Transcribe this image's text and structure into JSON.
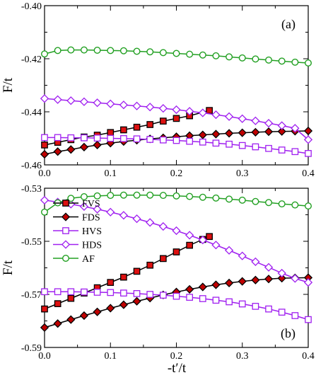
{
  "chart_data": [
    {
      "panel_label": "(a)",
      "type": "line",
      "ylabel": "F/t",
      "xlabel": "",
      "xlim": [
        0,
        0.4
      ],
      "ylim": [
        -0.46,
        -0.4
      ],
      "xticks": [
        0,
        0.1,
        0.2,
        0.3,
        0.4
      ],
      "xticklabels": [
        "0.0",
        "0.1",
        "0.2",
        "0.3",
        "0.4"
      ],
      "yticks": [
        -0.46,
        -0.44,
        -0.42,
        -0.4
      ],
      "yticklabels": [
        "-0.46",
        "-0.44",
        "-0.42",
        "-0.40"
      ],
      "grid": false,
      "series": [
        {
          "name": "FVS",
          "marker": "square",
          "fill": "#dd1010",
          "stroke": "#000000",
          "line": "#000000",
          "x": [
            0,
            0.02,
            0.04,
            0.06,
            0.08,
            0.1,
            0.12,
            0.14,
            0.16,
            0.18,
            0.2,
            0.22,
            0.25
          ],
          "y": [
            -0.4525,
            -0.4515,
            -0.4505,
            -0.4495,
            -0.4488,
            -0.4478,
            -0.4468,
            -0.4458,
            -0.4448,
            -0.4435,
            -0.4425,
            -0.4415,
            -0.4395
          ]
        },
        {
          "name": "FDS",
          "marker": "diamond",
          "fill": "#c00000",
          "stroke": "#000000",
          "line": "#000000",
          "x": [
            0,
            0.02,
            0.04,
            0.06,
            0.08,
            0.1,
            0.12,
            0.14,
            0.16,
            0.18,
            0.2,
            0.22,
            0.24,
            0.26,
            0.28,
            0.3,
            0.32,
            0.34,
            0.36,
            0.38,
            0.4
          ],
          "y": [
            -0.456,
            -0.455,
            -0.4542,
            -0.4533,
            -0.4525,
            -0.4518,
            -0.4512,
            -0.4507,
            -0.4502,
            -0.4498,
            -0.4494,
            -0.449,
            -0.4487,
            -0.4484,
            -0.4481,
            -0.4479,
            -0.4477,
            -0.4475,
            -0.4474,
            -0.4473,
            -0.4472
          ]
        },
        {
          "name": "HVS",
          "marker": "square-open",
          "fill": "#ffffff",
          "stroke": "#a020f0",
          "line": "#a020f0",
          "x": [
            0,
            0.02,
            0.04,
            0.06,
            0.08,
            0.1,
            0.12,
            0.14,
            0.16,
            0.18,
            0.2,
            0.22,
            0.24,
            0.26,
            0.28,
            0.3,
            0.32,
            0.34,
            0.36,
            0.38,
            0.4
          ],
          "y": [
            -0.4497,
            -0.4497,
            -0.4498,
            -0.4498,
            -0.4499,
            -0.45,
            -0.4501,
            -0.4502,
            -0.4504,
            -0.4506,
            -0.4508,
            -0.4511,
            -0.4514,
            -0.4518,
            -0.4522,
            -0.4527,
            -0.4532,
            -0.4538,
            -0.4544,
            -0.455,
            -0.4557
          ]
        },
        {
          "name": "HDS",
          "marker": "diamond-open",
          "fill": "#ffffff",
          "stroke": "#a020f0",
          "line": "#a020f0",
          "x": [
            0,
            0.02,
            0.04,
            0.06,
            0.08,
            0.1,
            0.12,
            0.14,
            0.16,
            0.18,
            0.2,
            0.22,
            0.24,
            0.26,
            0.28,
            0.3,
            0.32,
            0.34,
            0.36,
            0.38,
            0.4
          ],
          "y": [
            -0.435,
            -0.4354,
            -0.4358,
            -0.4362,
            -0.4366,
            -0.437,
            -0.4374,
            -0.4378,
            -0.4382,
            -0.4387,
            -0.4392,
            -0.4398,
            -0.4404,
            -0.4411,
            -0.4418,
            -0.4426,
            -0.4434,
            -0.4443,
            -0.4452,
            -0.4462,
            -0.4505
          ]
        },
        {
          "name": "AF",
          "marker": "circle-open",
          "fill": "#ffffff",
          "stroke": "#22a022",
          "line": "#22a022",
          "x": [
            0,
            0.02,
            0.04,
            0.06,
            0.08,
            0.1,
            0.12,
            0.14,
            0.16,
            0.18,
            0.2,
            0.22,
            0.24,
            0.26,
            0.28,
            0.3,
            0.32,
            0.34,
            0.36,
            0.38,
            0.4
          ],
          "y": [
            -0.4182,
            -0.4169,
            -0.4167,
            -0.4167,
            -0.4168,
            -0.4169,
            -0.417,
            -0.4172,
            -0.4174,
            -0.4177,
            -0.418,
            -0.4183,
            -0.4186,
            -0.4189,
            -0.4193,
            -0.4197,
            -0.4201,
            -0.4205,
            -0.4209,
            -0.4213,
            -0.4216
          ]
        }
      ]
    },
    {
      "panel_label": "(b)",
      "type": "line",
      "ylabel": "F/t",
      "xlabel": "-t′/t",
      "xlim": [
        0,
        0.4
      ],
      "ylim": [
        -0.59,
        -0.53
      ],
      "xticks": [
        0,
        0.1,
        0.2,
        0.3,
        0.4
      ],
      "xticklabels": [
        "0.0",
        "0.1",
        "0.2",
        "0.3",
        "0.4"
      ],
      "yticks": [
        -0.59,
        -0.57,
        -0.55,
        -0.53
      ],
      "yticklabels": [
        "-0.59",
        "-0.57",
        "-0.55",
        "-0.53"
      ],
      "grid": false,
      "legend": {
        "position": "left",
        "entries": [
          "FVS",
          "FDS",
          "HVS",
          "HDS",
          "AF"
        ]
      },
      "series": [
        {
          "name": "FVS",
          "marker": "square",
          "fill": "#dd1010",
          "stroke": "#000000",
          "line": "#000000",
          "x": [
            0,
            0.02,
            0.04,
            0.06,
            0.08,
            0.1,
            0.12,
            0.14,
            0.16,
            0.18,
            0.2,
            0.22,
            0.24,
            0.25
          ],
          "y": [
            -0.5755,
            -0.5735,
            -0.5715,
            -0.5695,
            -0.5675,
            -0.5655,
            -0.5635,
            -0.5613,
            -0.559,
            -0.5565,
            -0.554,
            -0.5515,
            -0.5493,
            -0.5482
          ]
        },
        {
          "name": "FDS",
          "marker": "diamond",
          "fill": "#c00000",
          "stroke": "#000000",
          "line": "#000000",
          "x": [
            0,
            0.02,
            0.04,
            0.06,
            0.08,
            0.1,
            0.12,
            0.14,
            0.16,
            0.18,
            0.2,
            0.22,
            0.24,
            0.26,
            0.28,
            0.3,
            0.32,
            0.34,
            0.36,
            0.38,
            0.4
          ],
          "y": [
            -0.5825,
            -0.581,
            -0.5795,
            -0.578,
            -0.5766,
            -0.5752,
            -0.5739,
            -0.5726,
            -0.5714,
            -0.5702,
            -0.5691,
            -0.5681,
            -0.5672,
            -0.5664,
            -0.5657,
            -0.5651,
            -0.5646,
            -0.5642,
            -0.5639,
            -0.5638,
            -0.5637
          ]
        },
        {
          "name": "HVS",
          "marker": "square-open",
          "fill": "#ffffff",
          "stroke": "#a020f0",
          "line": "#a020f0",
          "x": [
            0,
            0.02,
            0.04,
            0.06,
            0.08,
            0.1,
            0.12,
            0.14,
            0.16,
            0.18,
            0.2,
            0.22,
            0.24,
            0.26,
            0.28,
            0.3,
            0.32,
            0.34,
            0.36,
            0.38,
            0.4
          ],
          "y": [
            -0.569,
            -0.569,
            -0.569,
            -0.5691,
            -0.5692,
            -0.5693,
            -0.5695,
            -0.5697,
            -0.57,
            -0.5703,
            -0.5707,
            -0.5711,
            -0.5716,
            -0.5722,
            -0.5728,
            -0.5736,
            -0.5745,
            -0.5755,
            -0.5767,
            -0.578,
            -0.5795
          ]
        },
        {
          "name": "HDS",
          "marker": "diamond-open",
          "fill": "#ffffff",
          "stroke": "#a020f0",
          "line": "#a020f0",
          "x": [
            0,
            0.02,
            0.04,
            0.06,
            0.08,
            0.1,
            0.12,
            0.14,
            0.16,
            0.18,
            0.2,
            0.22,
            0.24,
            0.26,
            0.28,
            0.3,
            0.32,
            0.34,
            0.36,
            0.38,
            0.4
          ],
          "y": [
            -0.5345,
            -0.5352,
            -0.536,
            -0.5369,
            -0.5379,
            -0.539,
            -0.5402,
            -0.5415,
            -0.5429,
            -0.5444,
            -0.546,
            -0.5477,
            -0.5495,
            -0.5514,
            -0.5534,
            -0.5555,
            -0.5577,
            -0.5598,
            -0.562,
            -0.564,
            -0.5655
          ]
        },
        {
          "name": "AF",
          "marker": "circle-open",
          "fill": "#ffffff",
          "stroke": "#22a022",
          "line": "#22a022",
          "x": [
            0,
            0.02,
            0.04,
            0.06,
            0.08,
            0.1,
            0.12,
            0.14,
            0.16,
            0.18,
            0.2,
            0.22,
            0.24,
            0.26,
            0.28,
            0.3,
            0.32,
            0.34,
            0.36,
            0.38,
            0.4
          ],
          "y": [
            -0.539,
            -0.5355,
            -0.5338,
            -0.5332,
            -0.5329,
            -0.5327,
            -0.5326,
            -0.5326,
            -0.5326,
            -0.5327,
            -0.5329,
            -0.5331,
            -0.5334,
            -0.5337,
            -0.5341,
            -0.5345,
            -0.535,
            -0.5354,
            -0.5359,
            -0.5363,
            -0.5367
          ]
        }
      ]
    }
  ]
}
